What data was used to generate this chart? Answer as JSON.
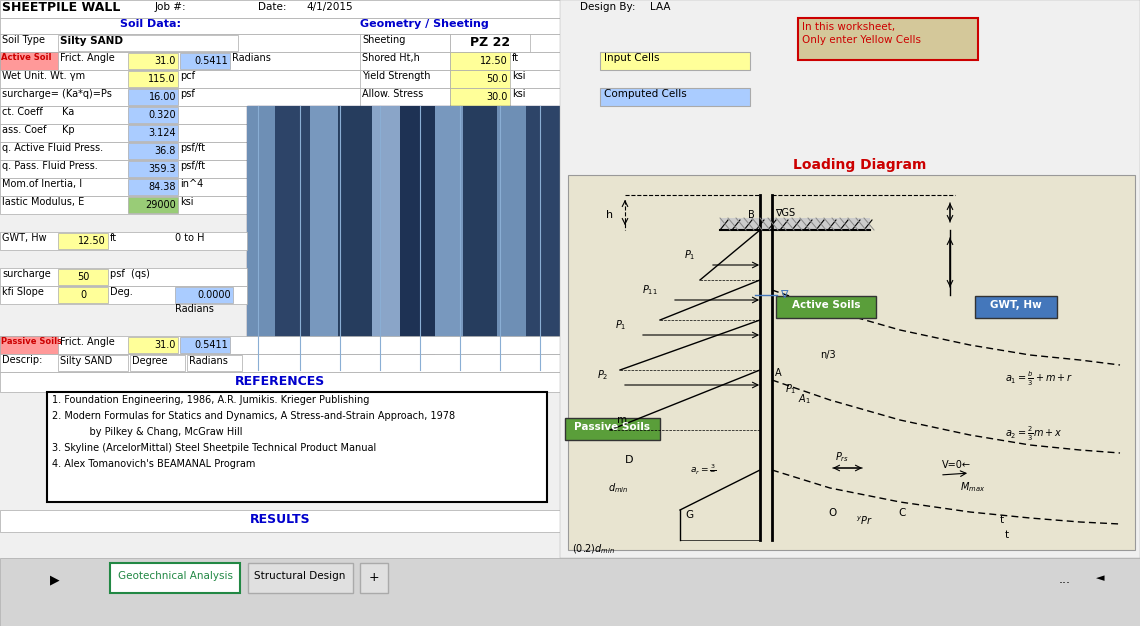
{
  "title": "SHEETPILE WALL",
  "job_num": "Job #:",
  "date_label": "Date:",
  "date_val": "4/1/2015",
  "design_by_label": "Design By:",
  "design_by_val": "LAA",
  "soil_data_label": "Soil Data:",
  "geometry_label": "Geometry / Sheeting",
  "soil_type_label": "Soil Type",
  "soil_type_val": "Silty SAND",
  "active_soil_label": "Active Soil",
  "frict_angle_label": "Frict. Angle",
  "frict_angle_val": "31.0",
  "frict_radians": "0.5411",
  "radians_label": "Radians",
  "wet_unit_label": "Wet Unit. Wt. γm",
  "wet_unit_val": "115.0",
  "wet_unit_unit": "pcf",
  "surcharge_label": "surcharge= (Ka*q)=Ps",
  "surcharge_val": "16.00",
  "surcharge_unit": "psf",
  "act_coeff_label": "ct. Coeff",
  "ka_label": "Ka",
  "ka_val": "0.320",
  "pass_coef_label": "ass. Coef",
  "kp_label": "Kp",
  "kp_val": "3.124",
  "active_fluid_label": "q. Active Fluid Press.",
  "active_fluid_val": "36.8",
  "active_fluid_unit": "psf/ft",
  "pass_fluid_label": "q. Pass. Fluid Press.",
  "pass_fluid_val": "359.3",
  "pass_fluid_unit": "psf/ft",
  "mom_inertia_label": "Mom.of Inertia, I",
  "mom_inertia_val": "84.38",
  "mom_inertia_unit": "in^4",
  "elastic_mod_label": "lastic Modulus, E",
  "elastic_mod_val": "29000",
  "elastic_mod_unit": "ksi",
  "gwt_label": "GWT, Hw",
  "gwt_val": "12.50",
  "gwt_unit": "ft",
  "gwt_note": "0 to H",
  "surcharge2_label": "surcharge",
  "surcharge2_val": "50",
  "surcharge2_unit": "psf  (qs)",
  "kfi_slope_label": "kfi Slope",
  "kfi_slope_val": "0",
  "kfi_slope_unit": "Deg.",
  "kfi_radians_val": "0.0000",
  "passive_soils_label": "Passive Soils",
  "passive_frict_label": "Frict. Angle",
  "passive_frict_val": "31.0",
  "passive_frict_radians": "0.5411",
  "descrip_label": "Descrip:",
  "descrip_val": "Silty SAND",
  "degree_label": "Degree",
  "radians_label2": "Radians",
  "sheeting_label": "Sheeting",
  "sheeting_val": "PZ 22",
  "shored_ht_label": "Shored Ht,h",
  "shored_ht_val": "12.50",
  "shored_ht_unit": "ft",
  "yield_strength_label": "Yield Strength",
  "yield_strength_val": "50.0",
  "yield_strength_unit": "ksi",
  "allow_stress_label": "Allow. Stress",
  "allow_stress_val": "30.0",
  "allow_stress_unit": "ksi",
  "input_cells_label": "Input Cells",
  "computed_cells_label": "Computed Cells",
  "worksheet_note1": "In this worksheet,",
  "worksheet_note2": "Only enter Yellow Cells",
  "loading_diagram_label": "Loading Diagram",
  "references_label": "REFERENCES",
  "ref1": "1. Foundation Engineering, 1986, A.R. Jumikis. Krieger Publishing",
  "ref2": "2. Modern Formulas for Statics and Dynamics, A Stress-and-Strain Approach, 1978",
  "ref2b": "            by Pilkey & Chang, McGraw Hill",
  "ref3": "3. Skyline (ArcelorMittal) Steel Sheetpile Technical Product Manual",
  "ref4": "4. Alex Tomanovich's BEAMANAL Program",
  "results_label": "RESULTS",
  "tab1": "Geotechnical Analysis",
  "tab2": "Structural Design",
  "active_soils_box_label": "Active Soils",
  "passive_soils_box_label": "Passive Soils",
  "gwt_hw_box_label": "GWT, Hw",
  "bg_color": "#f0f0f0",
  "white": "#ffffff",
  "yellow_cell": "#ffff99",
  "blue_cell": "#aaccff",
  "active_row_bg": "#ff9999",
  "note_bg": "#d4c89a",
  "input_cell_bg": "#ffff99",
  "computed_cell_bg": "#aaccff",
  "active_soils_box_bg": "#5a9e3a",
  "passive_soils_box_bg": "#5a9e3a",
  "gwt_box_bg": "#4477bb",
  "diagram_bg": "#e8e4d0",
  "tab_active_color": "#228844",
  "references_color": "#0000cc",
  "results_color": "#0000cc",
  "loading_diagram_color": "#cc0000",
  "soil_data_color": "#0000cc",
  "geometry_color": "#0000cc",
  "green_cell": "#99cc77",
  "cell_border": "#aaaaaa",
  "dark_border": "#555555"
}
